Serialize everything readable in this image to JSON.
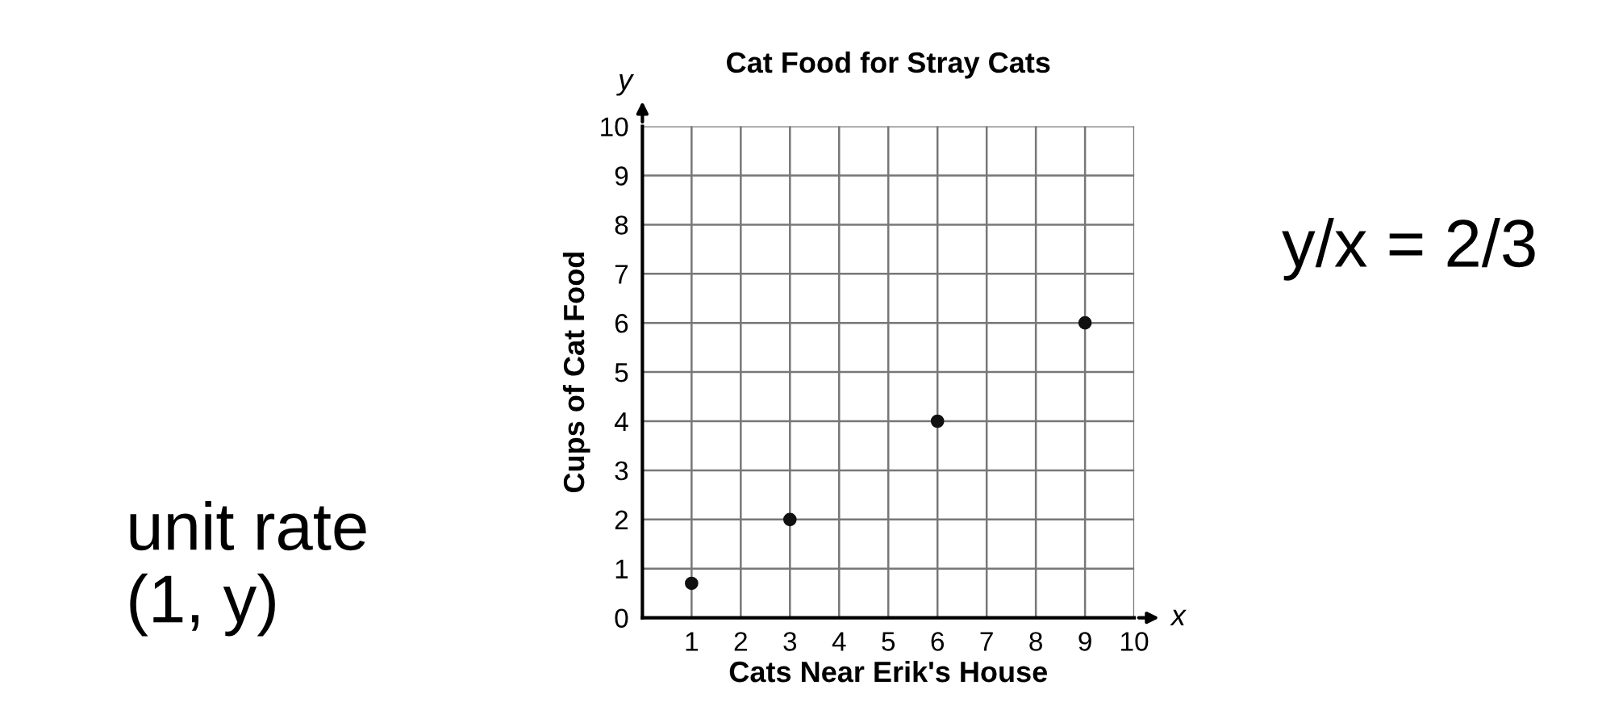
{
  "chart_data": {
    "type": "scatter",
    "title": "Cat Food for Stray Cats",
    "xlabel": "Cats Near Erik's House",
    "ylabel": "Cups of Cat Food",
    "x": [
      1,
      3,
      6,
      9
    ],
    "series": [
      {
        "color": "#111111",
        "values": [
          0.7,
          2,
          4,
          6
        ]
      }
    ],
    "xlim": [
      0,
      10
    ],
    "ylim": [
      0,
      10
    ],
    "xticks": [
      {
        "value": 0,
        "label": null
      },
      1,
      2,
      3,
      4,
      5,
      6,
      7,
      8,
      9,
      10
    ],
    "yticks": [
      0,
      1,
      2,
      3,
      4,
      5,
      6,
      7,
      8,
      9,
      10
    ],
    "grid": true,
    "marker": "circle",
    "annotations": [
      "x",
      "y",
      "unit rate\n(1, y)",
      "y/x = 2/3"
    ]
  }
}
